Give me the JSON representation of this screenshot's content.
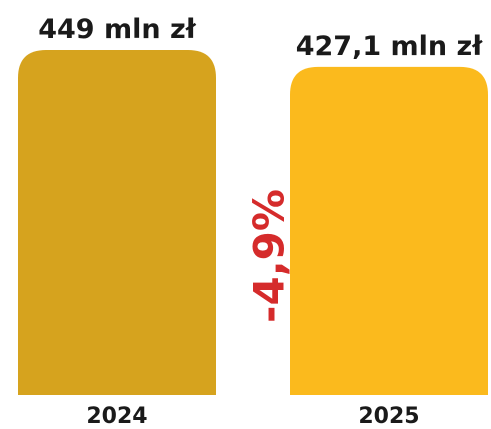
{
  "chart_data": {
    "type": "bar",
    "categories": [
      "2024",
      "2025"
    ],
    "values": [
      449,
      427.1
    ],
    "value_labels": [
      "449 mln zł",
      "427,1 mln zł"
    ],
    "change_label": "-4,9%",
    "title": "",
    "xlabel": "",
    "ylabel": "",
    "ylim": [
      0,
      449
    ],
    "grid": false,
    "colors": {
      "bars": [
        "#D6A31E",
        "#FBBA1D"
      ],
      "text": "#1a1a1a",
      "change": "#D52B2B"
    }
  }
}
